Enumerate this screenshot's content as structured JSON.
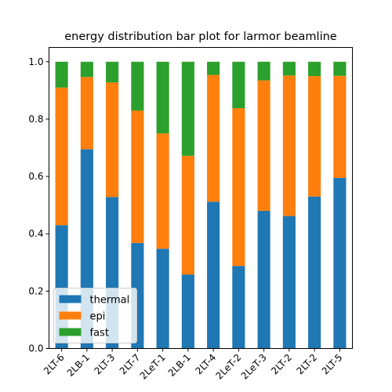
{
  "chart_data": {
    "type": "bar",
    "stacked": true,
    "title": "energy distribution bar plot for larmor beamline",
    "xlabel": "",
    "ylabel": "",
    "ylim": [
      0,
      1.05
    ],
    "yticks": [
      "0.0",
      "0.2",
      "0.4",
      "0.6",
      "0.8",
      "1.0"
    ],
    "categories": [
      "2LT-6",
      "2LB-1",
      "2LT-3",
      "2LT-7",
      "2LeT-1",
      "2LB-1",
      "2LT-4",
      "2LeT-2",
      "2LeT-3",
      "2LT-2",
      "2LT-2",
      "2LT-5"
    ],
    "series": [
      {
        "name": "thermal",
        "color": "#1f77b4",
        "values": [
          0.43,
          0.695,
          0.528,
          0.368,
          0.348,
          0.258,
          0.512,
          0.288,
          0.48,
          0.462,
          0.53,
          0.595
        ]
      },
      {
        "name": "epi",
        "color": "#ff7f0e",
        "values": [
          0.48,
          0.252,
          0.4,
          0.462,
          0.402,
          0.414,
          0.442,
          0.55,
          0.455,
          0.49,
          0.42,
          0.356
        ]
      },
      {
        "name": "fast",
        "color": "#2ca02c",
        "values": [
          0.09,
          0.053,
          0.072,
          0.17,
          0.25,
          0.328,
          0.046,
          0.162,
          0.065,
          0.048,
          0.05,
          0.049
        ]
      }
    ],
    "legend": {
      "position": "lower-left"
    },
    "grid": false
  }
}
